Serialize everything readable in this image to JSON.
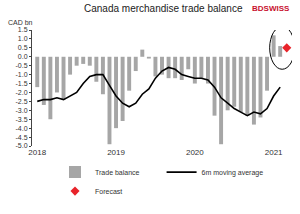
{
  "chart_data": {
    "type": "bar",
    "title": "Canada merchandise trade balance",
    "y_label": "CAD bn",
    "logo": "BDSWISS",
    "categories": [
      "2018",
      null,
      null,
      null,
      null,
      null,
      null,
      null,
      null,
      null,
      null,
      null,
      "2019",
      null,
      null,
      null,
      null,
      null,
      null,
      null,
      null,
      null,
      null,
      null,
      "2020",
      null,
      null,
      null,
      null,
      null,
      null,
      null,
      null,
      null,
      null,
      null,
      "2021",
      null,
      null
    ],
    "series": [
      {
        "name": "Trade balance",
        "type": "bar",
        "color": "#a6a6a6",
        "values": [
          -1.7,
          -2.7,
          -3.5,
          -2.0,
          -2.4,
          -1.0,
          -0.5,
          -0.4,
          -0.5,
          -1.4,
          -2.1,
          -4.9,
          -4.0,
          -3.6,
          -1.9,
          -0.8,
          0.4,
          -0.1,
          -1.1,
          -1.0,
          -1.2,
          -1.2,
          -1.3,
          -0.7,
          -1.5,
          -1.2,
          -1.5,
          -3.3,
          -4.9,
          -3.0,
          -2.8,
          -3.1,
          -3.3,
          -3.8,
          -3.4,
          -1.9,
          1.2,
          0.6,
          null
        ]
      },
      {
        "name": "6m moving average",
        "type": "line",
        "color": "#000000",
        "line_style": "solid",
        "values": [
          -2.5,
          -2.4,
          -2.4,
          -2.3,
          -2.4,
          -2.2,
          -2.0,
          -1.5,
          -1.1,
          -1.0,
          -1.0,
          -1.6,
          -2.2,
          -2.6,
          -2.8,
          -2.6,
          -2.1,
          -1.8,
          -1.2,
          -0.8,
          -0.6,
          -0.7,
          -1.0,
          -1.1,
          -1.2,
          -1.2,
          -1.3,
          -1.7,
          -2.3,
          -2.6,
          -2.9,
          -3.1,
          -3.3,
          -3.1,
          -3.2,
          -2.9,
          -2.2,
          -1.7,
          null
        ]
      },
      {
        "name": "Forecast",
        "type": "scatter",
        "color": "#e8232a",
        "marker": "diamond",
        "values": [
          null,
          null,
          null,
          null,
          null,
          null,
          null,
          null,
          null,
          null,
          null,
          null,
          null,
          null,
          null,
          null,
          null,
          null,
          null,
          null,
          null,
          null,
          null,
          null,
          null,
          null,
          null,
          null,
          null,
          null,
          null,
          null,
          null,
          null,
          null,
          null,
          null,
          null,
          0.5
        ]
      }
    ],
    "ylim": [
      -5,
      1.5
    ],
    "yticks": [
      1.5,
      {
        "value": 1,
        "label": "1.0"
      },
      0.5,
      {
        "value": 0,
        "label": "0.0"
      },
      -0.5,
      {
        "value": -1,
        "label": "-1.0"
      },
      -1.5,
      {
        "value": -2,
        "label": "-2.0"
      },
      -2.5,
      {
        "value": -3,
        "label": "-3.0"
      },
      -3.5,
      {
        "value": -4,
        "label": "-4.0"
      },
      -4.5,
      {
        "value": -5,
        "label": "-5.0"
      }
    ],
    "grid": false,
    "legend": "bottom"
  }
}
